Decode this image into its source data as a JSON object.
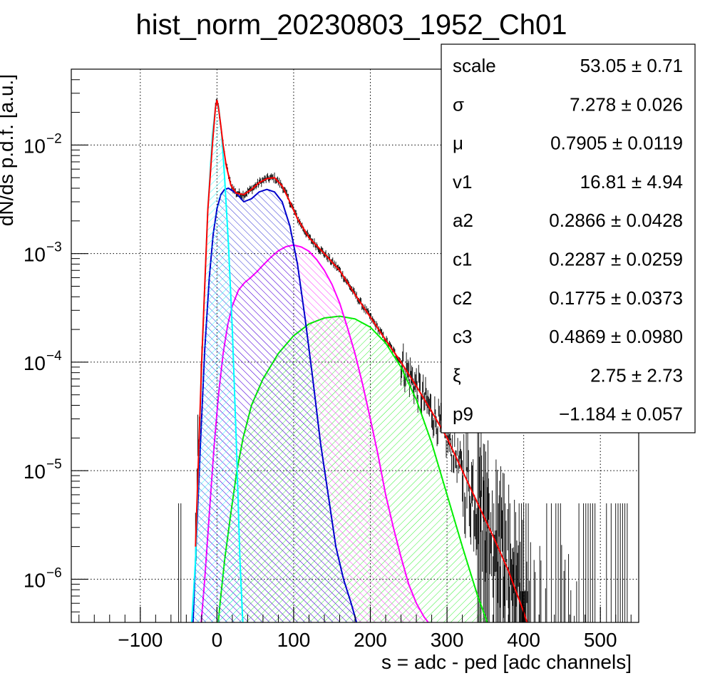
{
  "chart_data": {
    "type": "line",
    "title": "hist_norm_20230803_1952_Ch01",
    "xlabel": "s = adc - ped [adc channels]",
    "ylabel": "dN/ds p.d.f. [a.u.]",
    "xlim": [
      -190,
      550
    ],
    "ylim": [
      4e-07,
      0.05
    ],
    "yscale": "log",
    "grid": true,
    "x_ticks": [
      -100,
      0,
      100,
      200,
      300,
      400,
      500
    ],
    "x_tick_labels": [
      "−100",
      "0",
      "100",
      "200",
      "300",
      "400",
      "500"
    ],
    "y_ticks": [
      {
        "value": 1e-06,
        "base": "10",
        "exp": "−6"
      },
      {
        "value": 1e-05,
        "base": "10",
        "exp": "−5"
      },
      {
        "value": 0.0001,
        "base": "10",
        "exp": "−4"
      },
      {
        "value": 0.001,
        "base": "10",
        "exp": "−3"
      },
      {
        "value": 0.01,
        "base": "10",
        "exp": "−2"
      }
    ],
    "series": [
      {
        "color": "#ff0000",
        "fill": false,
        "x": [
          -28,
          -20,
          -12,
          -6,
          -2,
          0,
          2,
          5,
          8,
          12,
          18,
          25,
          35,
          45,
          55,
          65,
          75,
          85,
          95,
          105,
          120,
          140,
          160,
          180,
          200,
          220,
          240,
          260,
          280,
          300,
          320,
          340,
          360,
          380,
          400,
          410
        ],
        "y": [
          2e-06,
          0.0001,
          0.0025,
          0.01,
          0.022,
          0.026,
          0.022,
          0.015,
          0.01,
          0.0065,
          0.0043,
          0.0036,
          0.0035,
          0.0039,
          0.0045,
          0.0049,
          0.005,
          0.0042,
          0.003,
          0.0021,
          0.0014,
          0.001,
          0.0007,
          0.00042,
          0.00026,
          0.00016,
          0.0001,
          6e-05,
          3.5e-05,
          2e-05,
          1e-05,
          5e-06,
          2.5e-06,
          1.2e-06,
          5e-07,
          3e-07
        ]
      },
      {
        "color": "#00ffff",
        "fill": true,
        "x": [
          -34,
          -28,
          -20,
          -12,
          -6,
          -2,
          0,
          2,
          6,
          10,
          15,
          20,
          25,
          30,
          33,
          36
        ],
        "y": [
          3e-07,
          1.5e-06,
          0.0001,
          0.0025,
          0.012,
          0.022,
          0.025,
          0.023,
          0.013,
          0.005,
          0.0012,
          0.0002,
          2e-05,
          1.5e-06,
          5e-07,
          2e-07
        ]
      },
      {
        "color": "#0000cc",
        "fill": true,
        "x": [
          -32,
          -28,
          -22,
          -16,
          -10,
          -5,
          0,
          5,
          10,
          15,
          25,
          35,
          45,
          55,
          65,
          75,
          85,
          95,
          105,
          115,
          125,
          135,
          145,
          155,
          165,
          175,
          182,
          186
        ],
        "y": [
          3e-07,
          1.5e-06,
          1.5e-05,
          0.00013,
          0.0006,
          0.0015,
          0.0026,
          0.0035,
          0.0039,
          0.004,
          0.0036,
          0.003,
          0.0032,
          0.0037,
          0.0039,
          0.0037,
          0.003,
          0.0018,
          0.0008,
          0.00025,
          7e-05,
          1.8e-05,
          6e-06,
          2e-06,
          1e-06,
          6e-07,
          4e-07,
          3e-07
        ]
      },
      {
        "color": "#ff00ff",
        "fill": true,
        "x": [
          -22,
          -16,
          -10,
          -4,
          2,
          8,
          14,
          20,
          28,
          36,
          44,
          52,
          60,
          70,
          80,
          90,
          100,
          110,
          120,
          130,
          140,
          150,
          160,
          170,
          180,
          190,
          200,
          210,
          220,
          230,
          240,
          250,
          260,
          270,
          278,
          282
        ],
        "y": [
          3e-07,
          1e-06,
          4e-06,
          1.6e-05,
          5e-05,
          0.00012,
          0.00022,
          0.00033,
          0.00046,
          0.00054,
          0.0006,
          0.00068,
          0.00078,
          0.00092,
          0.00106,
          0.00116,
          0.0012,
          0.00115,
          0.00105,
          0.00088,
          0.0007,
          0.00052,
          0.00035,
          0.00021,
          0.00012,
          6.2e-05,
          3e-05,
          1.4e-05,
          6e-06,
          3e-06,
          1.6e-06,
          9e-07,
          6e-07,
          4.5e-07,
          3.8e-07,
          3.4e-07
        ]
      },
      {
        "color": "#00ee00",
        "fill": true,
        "x": [
          0,
          4,
          10,
          18,
          26,
          34,
          45,
          60,
          80,
          100,
          120,
          140,
          160,
          180,
          200,
          220,
          240,
          260,
          280,
          300,
          320,
          340,
          350,
          355
        ],
        "y": [
          3e-07,
          6e-07,
          1.5e-06,
          4e-06,
          1e-05,
          2e-05,
          4e-05,
          7e-05,
          0.00012,
          0.000175,
          0.000225,
          0.000255,
          0.000265,
          0.00025,
          0.00021,
          0.00015,
          9e-05,
          4.5e-05,
          1.8e-05,
          6e-06,
          2e-06,
          7e-07,
          4.5e-07,
          3.5e-07
        ]
      }
    ]
  },
  "stats": [
    {
      "name": "scale",
      "value": "53.05 ± 0.71"
    },
    {
      "name": "σ",
      "value": "7.278 ± 0.026"
    },
    {
      "name": "μ",
      "value": "0.7905 ± 0.0119"
    },
    {
      "name": "v1",
      "value": "16.81 ± 4.94"
    },
    {
      "name": "a2",
      "value": "0.2866 ± 0.0428"
    },
    {
      "name": "c1",
      "value": "0.2287 ± 0.0259"
    },
    {
      "name": "c2",
      "value": "0.1775 ± 0.0373"
    },
    {
      "name": "c3",
      "value": "0.4869 ± 0.0980"
    },
    {
      "name": "ξ",
      "value": "2.75 ± 2.73"
    },
    {
      "name": "p9",
      "value": "−1.184 ± 0.057"
    }
  ]
}
